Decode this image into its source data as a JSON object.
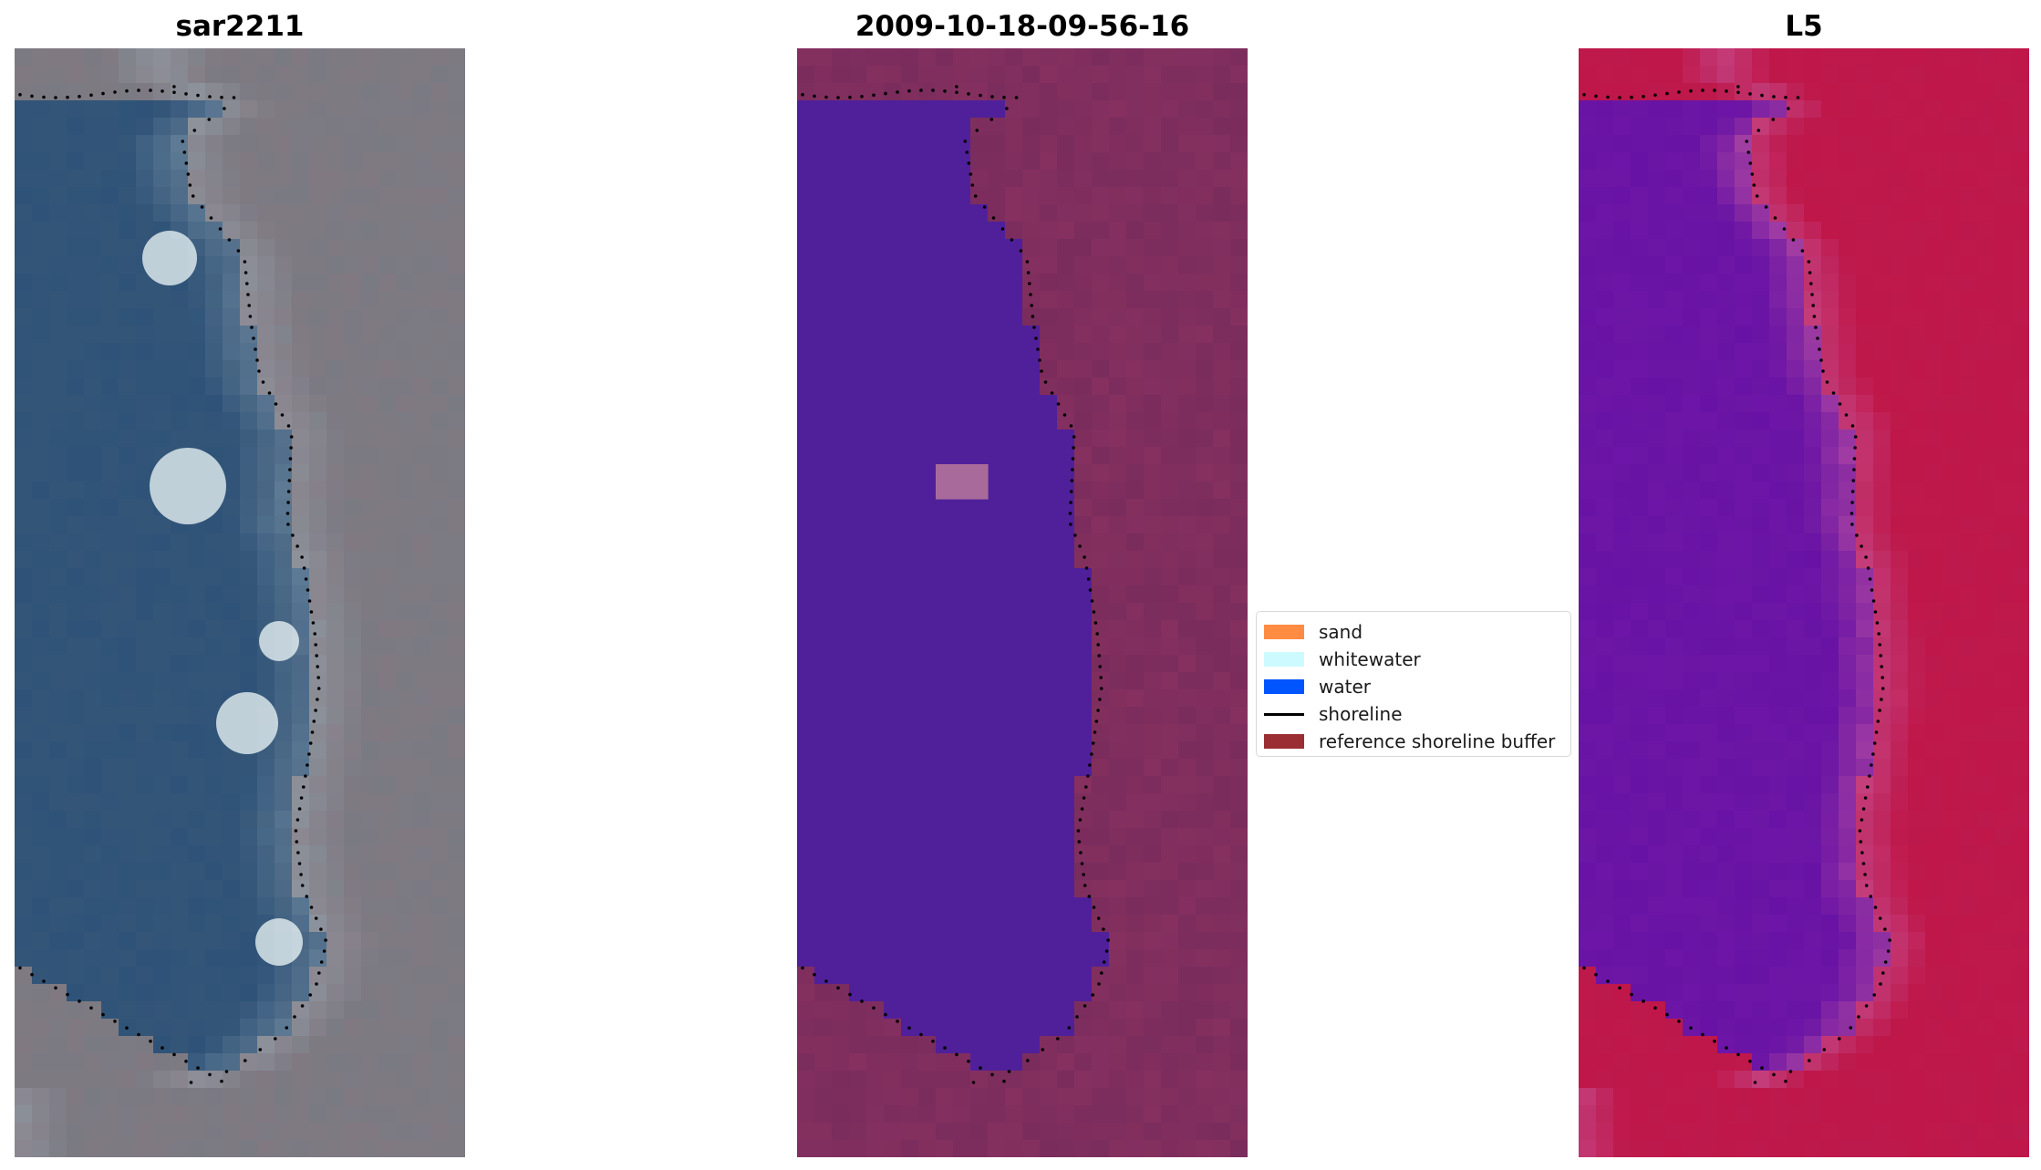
{
  "panels": [
    {
      "title": "sar2211"
    },
    {
      "title": "2009-10-18-09-56-16"
    },
    {
      "title": "L5"
    }
  ],
  "legend": {
    "items": [
      {
        "label": "sand",
        "kind": "patch",
        "color": "#ff8c42"
      },
      {
        "label": "whitewater",
        "kind": "patch",
        "color": "#ccfaff"
      },
      {
        "label": "water",
        "kind": "patch",
        "color": "#0055ff"
      },
      {
        "label": "shoreline",
        "kind": "line",
        "color": "#000000"
      },
      {
        "label": "reference shoreline buffer",
        "kind": "patch",
        "color": "#9b2e33"
      }
    ]
  },
  "colors": {
    "rgb_water": "#2f5378",
    "rgb_land": "#7a7a82",
    "class_water": "#50209a",
    "class_land": "#85305f",
    "index_water": "#6d16a6",
    "index_land": "#c0174a"
  }
}
